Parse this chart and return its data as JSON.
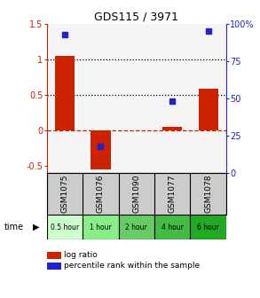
{
  "title": "GDS115 / 3971",
  "samples": [
    "GSM1075",
    "GSM1076",
    "GSM1090",
    "GSM1077",
    "GSM1078"
  ],
  "time_labels": [
    "0.5 hour",
    "1 hour",
    "2 hour",
    "4 hour",
    "6 hour"
  ],
  "time_colors": [
    "#ccffcc",
    "#88ee88",
    "#66cc66",
    "#44bb44",
    "#22aa22"
  ],
  "log_ratios": [
    1.05,
    -0.55,
    0.0,
    0.05,
    0.58
  ],
  "percentile_ranks": [
    93,
    18,
    null,
    48,
    95
  ],
  "bar_color": "#cc2200",
  "dot_color": "#2222cc",
  "ylim_left": [
    -0.6,
    1.5
  ],
  "ylim_right": [
    0,
    100
  ],
  "yticks_left": [
    -0.5,
    0.0,
    0.5,
    1.0,
    1.5
  ],
  "yticks_right": [
    0,
    25,
    50,
    75,
    100
  ],
  "ytick_labels_left": [
    "-0.5",
    "0",
    "0.5",
    "1",
    "1.5"
  ],
  "ytick_labels_right": [
    "0",
    "25",
    "50",
    "75",
    "100%"
  ],
  "hlines_dotted": [
    0.5,
    1.0
  ],
  "hline_dashed": 0.0,
  "bar_width": 0.55,
  "background_color": "#ffffff",
  "sample_bg_color": "#cccccc"
}
